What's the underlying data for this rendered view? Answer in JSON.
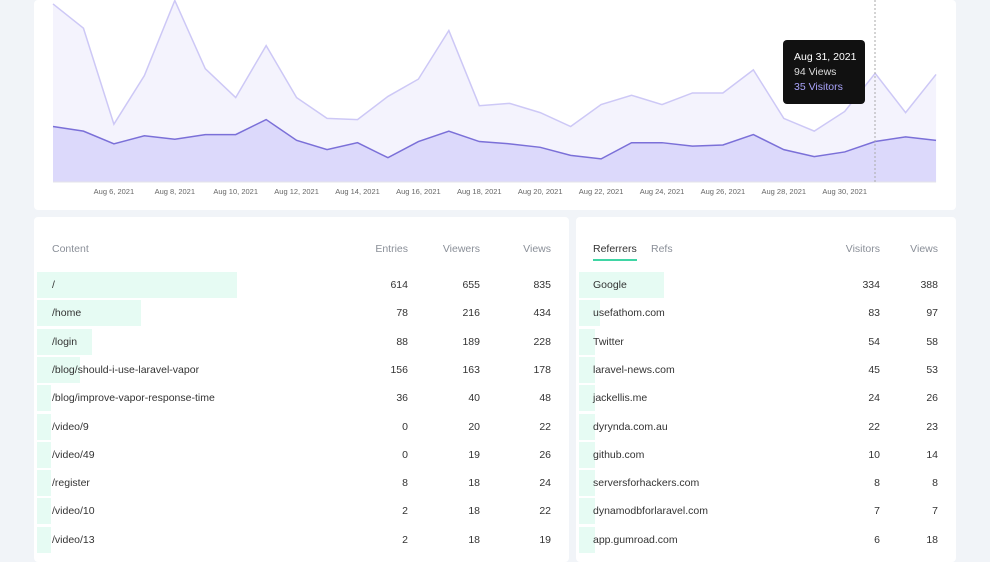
{
  "chart_data": {
    "type": "area",
    "categories": [
      null,
      null,
      "Aug 6, 2021",
      null,
      "Aug 8, 2021",
      null,
      "Aug 10, 2021",
      null,
      "Aug 12, 2021",
      null,
      "Aug 14, 2021",
      null,
      "Aug 16, 2021",
      null,
      "Aug 18, 2021",
      null,
      "Aug 20, 2021",
      null,
      "Aug 22, 2021",
      null,
      "Aug 24, 2021",
      null,
      "Aug 26, 2021",
      null,
      "Aug 28, 2021",
      null,
      "Aug 30, 2021",
      null,
      null,
      null
    ],
    "series": [
      {
        "color": "#cdc8f6",
        "fill": "#f4f3fd",
        "values": [
          154,
          133,
          50,
          92,
          157,
          98,
          73,
          118,
          73,
          55,
          54,
          74,
          89,
          131,
          66,
          68,
          60,
          48,
          67,
          75,
          67,
          77,
          77,
          97,
          55,
          44,
          61,
          94,
          60,
          93
        ]
      },
      {
        "color": "#7b70d8",
        "fill": "#dcd9fb",
        "values": [
          48,
          44,
          33,
          40,
          37,
          41,
          41,
          54,
          36,
          28,
          34,
          21,
          35,
          44,
          35,
          33,
          30,
          23,
          20,
          34,
          34,
          31,
          32,
          41,
          28,
          22,
          26,
          35,
          39,
          36
        ]
      }
    ],
    "ylim": [
      0,
      160
    ],
    "tooltip": {
      "title": "Aug 31, 2021",
      "lines": [
        "94 Views",
        "35 Visitors"
      ]
    }
  },
  "content_panel": {
    "columns": [
      "Content",
      "Entries",
      "Viewers",
      "Views"
    ],
    "rows": [
      [
        "/",
        614,
        655,
        835
      ],
      [
        "/home",
        78,
        216,
        434
      ],
      [
        "/login",
        88,
        189,
        228
      ],
      [
        "/blog/should-i-use-laravel-vapor",
        156,
        163,
        178
      ],
      [
        "/blog/improve-vapor-response-time",
        36,
        40,
        48
      ],
      [
        "/video/9",
        0,
        20,
        22
      ],
      [
        "/video/49",
        0,
        19,
        26
      ],
      [
        "/register",
        8,
        18,
        24
      ],
      [
        "/video/10",
        2,
        18,
        22
      ],
      [
        "/video/13",
        2,
        18,
        19
      ]
    ]
  },
  "referrers_panel": {
    "tabs": [
      "Referrers",
      "Refs"
    ],
    "columns": [
      "Visitors",
      "Views"
    ],
    "rows": [
      [
        "Google",
        334,
        388
      ],
      [
        "usefathom.com",
        83,
        97
      ],
      [
        "Twitter",
        54,
        58
      ],
      [
        "laravel-news.com",
        45,
        53
      ],
      [
        "jackellis.me",
        24,
        26
      ],
      [
        "dyrynda.com.au",
        22,
        23
      ],
      [
        "github.com",
        10,
        14
      ],
      [
        "serversforhackers.com",
        8,
        8
      ],
      [
        "dynamodbforlaravel.com",
        7,
        7
      ],
      [
        "app.gumroad.com",
        6,
        18
      ]
    ]
  }
}
